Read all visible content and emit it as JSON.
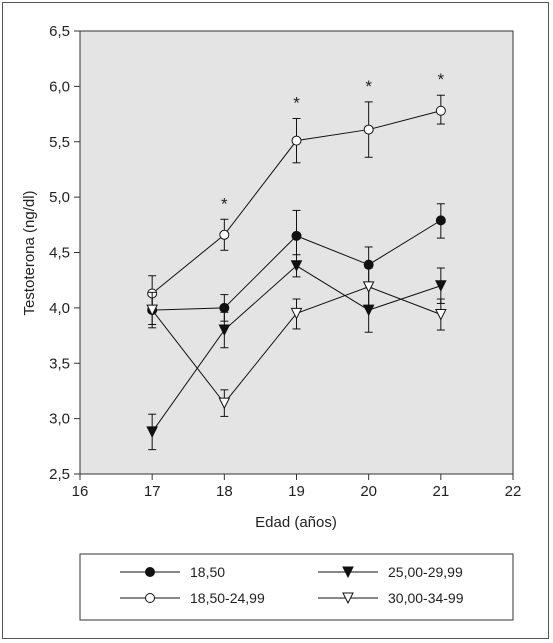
{
  "chart_data": {
    "type": "line",
    "xlabel": "Edad (años)",
    "ylabel": "Testoterona (ng/dl)",
    "xlim": [
      16,
      22
    ],
    "ylim": [
      2.5,
      6.5
    ],
    "x_ticks": [
      "16",
      "17",
      "18",
      "19",
      "20",
      "21",
      "22"
    ],
    "y_ticks": [
      "2,5",
      "3,0",
      "3,5",
      "4,0",
      "4,5",
      "5,0",
      "5,5",
      "6,0",
      "6,5"
    ],
    "grid": false,
    "plot_background": "#e4e4e4",
    "legend_position": "bottom",
    "significance_marker": "*",
    "significance_x": [
      18,
      19,
      20,
      21
    ],
    "series": [
      {
        "name": "18,50",
        "marker": "filled-circle",
        "x": [
          17,
          18,
          19,
          20,
          21
        ],
        "y": [
          3.98,
          4.0,
          4.65,
          4.39,
          4.79
        ],
        "err_low": [
          3.85,
          3.88,
          4.42,
          4.23,
          4.63
        ],
        "err_high": [
          4.12,
          4.12,
          4.88,
          4.55,
          4.94
        ]
      },
      {
        "name": "25,00-29,99",
        "marker": "filled-triangle-down",
        "x": [
          17,
          18,
          19,
          20,
          21
        ],
        "y": [
          2.88,
          3.8,
          4.38,
          3.98,
          4.2
        ],
        "err_low": [
          2.72,
          3.64,
          4.28,
          3.78,
          4.04
        ],
        "err_high": [
          3.04,
          3.96,
          4.48,
          4.18,
          4.36
        ]
      },
      {
        "name": "18,50-24,99",
        "marker": "open-circle",
        "x": [
          17,
          18,
          19,
          20,
          21
        ],
        "y": [
          4.13,
          4.66,
          5.51,
          5.61,
          5.78
        ],
        "err_low": [
          3.98,
          4.52,
          5.31,
          5.36,
          5.66
        ],
        "err_high": [
          4.29,
          4.8,
          5.71,
          5.86,
          5.92
        ]
      },
      {
        "name": "30,00-34-99",
        "marker": "open-triangle-down",
        "x": [
          17,
          18,
          19,
          20,
          21
        ],
        "y": [
          3.98,
          3.14,
          3.95,
          4.19,
          3.94
        ],
        "err_low": [
          3.82,
          3.02,
          3.81,
          4.02,
          3.8
        ],
        "err_high": [
          4.14,
          3.26,
          4.08,
          4.36,
          4.08
        ]
      }
    ]
  }
}
